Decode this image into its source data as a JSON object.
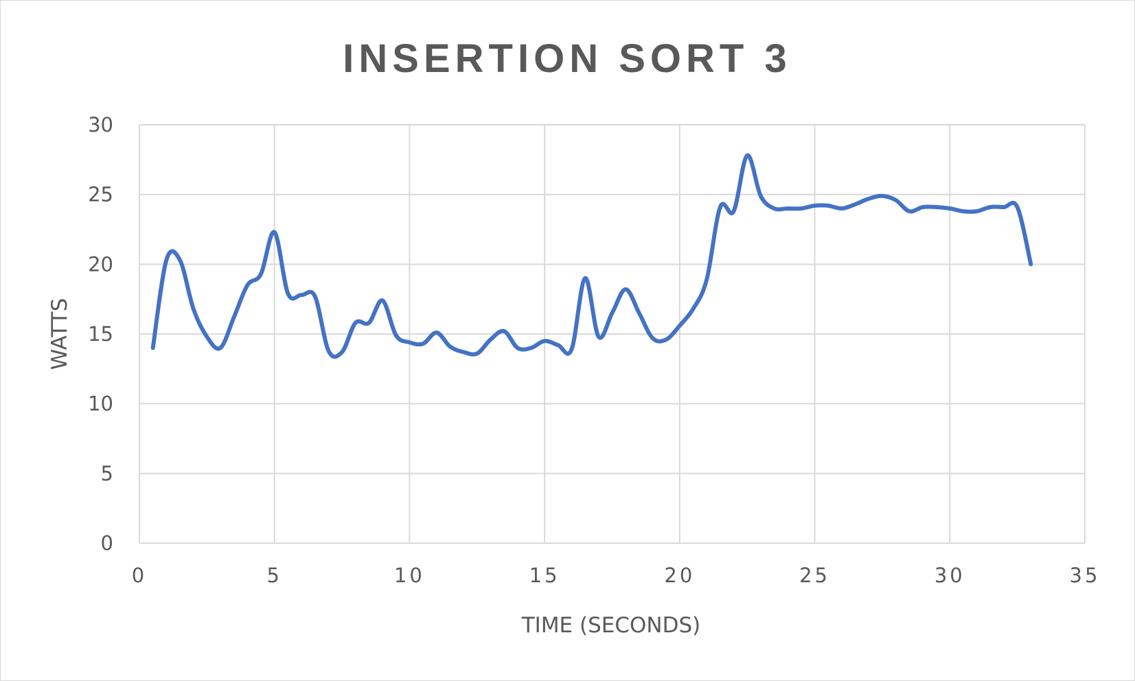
{
  "chart_data": {
    "type": "line",
    "title": "INSERTION SORT 3",
    "xlabel": "TIME (SECONDS)",
    "ylabel": "WATTS",
    "xlim": [
      0,
      35
    ],
    "ylim": [
      0,
      30
    ],
    "x_ticks": [
      "0",
      "5",
      "10",
      "15",
      "20",
      "25",
      "30",
      "35"
    ],
    "y_ticks": [
      "0",
      "5",
      "10",
      "15",
      "20",
      "25",
      "30"
    ],
    "grid": true,
    "legend": "none",
    "series": [
      {
        "color": "#4472c4",
        "x": [
          0.5,
          1.0,
          1.5,
          2.0,
          2.5,
          3.0,
          3.5,
          4.0,
          4.5,
          5.0,
          5.5,
          6.0,
          6.5,
          7.0,
          7.5,
          8.0,
          8.5,
          9.0,
          9.5,
          10.0,
          10.5,
          11.0,
          11.5,
          12.0,
          12.5,
          13.0,
          13.5,
          14.0,
          14.5,
          15.0,
          15.5,
          16.0,
          16.5,
          17.0,
          17.5,
          18.0,
          18.5,
          19.0,
          19.5,
          20.0,
          20.5,
          21.0,
          21.5,
          22.0,
          22.5,
          23.0,
          23.5,
          24.0,
          24.5,
          25.0,
          25.5,
          26.0,
          26.5,
          27.0,
          27.5,
          28.0,
          28.5,
          29.0,
          29.5,
          30.0,
          30.5,
          31.0,
          31.5,
          32.0,
          32.5,
          33.0
        ],
        "y": [
          14.0,
          20.3,
          20.3,
          16.8,
          14.8,
          14.0,
          16.2,
          18.5,
          19.3,
          22.3,
          17.9,
          17.8,
          17.7,
          13.8,
          13.7,
          15.8,
          15.8,
          17.4,
          14.9,
          14.4,
          14.3,
          15.1,
          14.1,
          13.7,
          13.6,
          14.6,
          15.2,
          14.0,
          14.0,
          14.5,
          14.2,
          13.9,
          19.0,
          14.8,
          16.5,
          18.2,
          16.5,
          14.7,
          14.6,
          15.6,
          16.8,
          18.9,
          24.1,
          23.8,
          27.8,
          24.9,
          24.0,
          24.0,
          24.0,
          24.2,
          24.2,
          24.0,
          24.3,
          24.7,
          24.9,
          24.6,
          23.8,
          24.1,
          24.1,
          24.0,
          23.8,
          23.8,
          24.1,
          24.1,
          24.1,
          20.0
        ]
      }
    ]
  }
}
